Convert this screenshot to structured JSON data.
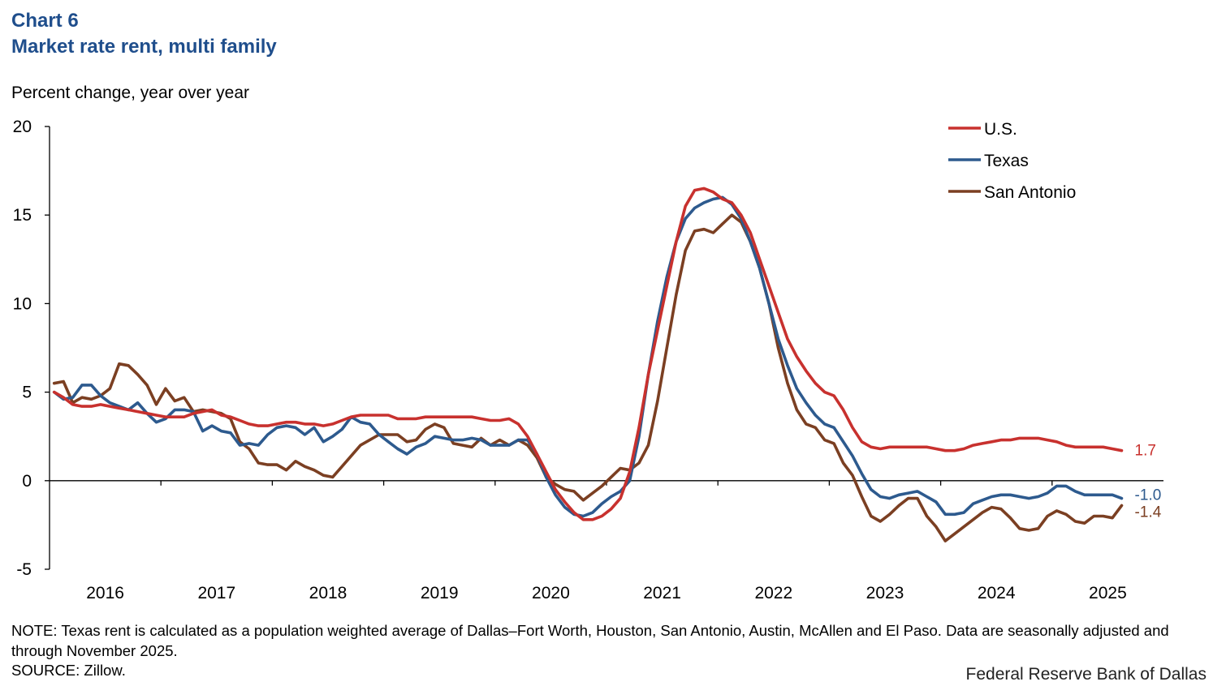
{
  "header": {
    "chart_number": "Chart 6",
    "title": "Market rate rent, multi family",
    "ylabel": "Percent change, year over year"
  },
  "footer": {
    "note": "NOTE: Texas rent is calculated as a population weighted average of Dallas–Fort Worth, Houston, San Antonio, Austin, McAllen and El Paso. Data are seasonally adjusted and through November 2025.",
    "source": "SOURCE: Zillow.",
    "brand": "Federal Reserve Bank of Dallas"
  },
  "chart_data": {
    "type": "line",
    "title": "Market rate rent, multi family",
    "ylabel": "Percent change, year over year",
    "xlabel": "",
    "ylim": [
      -5,
      20
    ],
    "yticks": [
      -5,
      0,
      5,
      10,
      15,
      20
    ],
    "xlim": [
      "2016-01",
      "2025-12"
    ],
    "x_tick_labels": [
      "2016",
      "2017",
      "2018",
      "2019",
      "2020",
      "2021",
      "2022",
      "2023",
      "2024",
      "2025"
    ],
    "grid": false,
    "legend_position": "top-right",
    "x_start": "2016-01",
    "x_frequency": "monthly",
    "series": [
      {
        "name": "U.S.",
        "color": "#c8312e",
        "end_label": "1.7",
        "values": [
          5.0,
          4.7,
          4.3,
          4.2,
          4.2,
          4.3,
          4.2,
          4.1,
          4.0,
          3.9,
          3.8,
          3.7,
          3.6,
          3.6,
          3.6,
          3.8,
          3.9,
          4.0,
          3.7,
          3.6,
          3.4,
          3.2,
          3.1,
          3.1,
          3.2,
          3.3,
          3.3,
          3.2,
          3.2,
          3.1,
          3.2,
          3.4,
          3.6,
          3.7,
          3.7,
          3.7,
          3.7,
          3.5,
          3.5,
          3.5,
          3.6,
          3.6,
          3.6,
          3.6,
          3.6,
          3.6,
          3.5,
          3.4,
          3.4,
          3.5,
          3.2,
          2.5,
          1.5,
          0.5,
          -0.5,
          -1.2,
          -1.8,
          -2.2,
          -2.2,
          -2.0,
          -1.6,
          -1.0,
          0.5,
          3.0,
          6.0,
          8.5,
          11.0,
          13.5,
          15.5,
          16.4,
          16.5,
          16.3,
          15.9,
          15.7,
          15.0,
          14.0,
          12.5,
          11.0,
          9.5,
          8.0,
          7.0,
          6.2,
          5.5,
          5.0,
          4.8,
          4.0,
          3.0,
          2.2,
          1.9,
          1.8,
          1.9,
          1.9,
          1.9,
          1.9,
          1.9,
          1.8,
          1.7,
          1.7,
          1.8,
          2.0,
          2.1,
          2.2,
          2.3,
          2.3,
          2.4,
          2.4,
          2.4,
          2.3,
          2.2,
          2.0,
          1.9,
          1.9,
          1.9,
          1.9,
          1.8,
          1.7
        ]
      },
      {
        "name": "Texas",
        "color": "#2d5a8e",
        "end_label": "-1.0",
        "values": [
          5.0,
          4.6,
          4.7,
          5.4,
          5.4,
          4.8,
          4.4,
          4.2,
          4.0,
          4.4,
          3.8,
          3.3,
          3.5,
          4.0,
          4.0,
          3.9,
          2.8,
          3.1,
          2.8,
          2.7,
          2.0,
          2.1,
          2.0,
          2.6,
          3.0,
          3.1,
          3.0,
          2.6,
          3.0,
          2.2,
          2.5,
          2.9,
          3.6,
          3.3,
          3.2,
          2.6,
          2.2,
          1.8,
          1.5,
          1.9,
          2.1,
          2.5,
          2.4,
          2.3,
          2.3,
          2.4,
          2.3,
          2.0,
          2.0,
          2.0,
          2.3,
          2.3,
          1.5,
          0.2,
          -0.8,
          -1.5,
          -1.9,
          -2.0,
          -1.8,
          -1.3,
          -0.9,
          -0.6,
          0.0,
          2.5,
          6.0,
          9.0,
          11.5,
          13.5,
          14.8,
          15.4,
          15.7,
          15.9,
          16.0,
          15.6,
          14.8,
          13.5,
          12.0,
          10.0,
          8.0,
          6.5,
          5.2,
          4.4,
          3.7,
          3.2,
          3.0,
          2.2,
          1.4,
          0.4,
          -0.5,
          -0.9,
          -1.0,
          -0.8,
          -0.7,
          -0.6,
          -0.9,
          -1.2,
          -1.9,
          -1.9,
          -1.8,
          -1.3,
          -1.1,
          -0.9,
          -0.8,
          -0.8,
          -0.9,
          -1.0,
          -0.9,
          -0.7,
          -0.3,
          -0.3,
          -0.6,
          -0.8,
          -0.8,
          -0.8,
          -0.8,
          -1.0
        ]
      },
      {
        "name": "San Antonio",
        "color": "#7b3f22",
        "end_label": "-1.4",
        "values": [
          5.5,
          5.6,
          4.4,
          4.7,
          4.6,
          4.8,
          5.2,
          6.6,
          6.5,
          6.0,
          5.4,
          4.3,
          5.2,
          4.5,
          4.7,
          3.9,
          4.0,
          3.9,
          3.8,
          3.5,
          2.2,
          1.8,
          1.0,
          0.9,
          0.9,
          0.6,
          1.1,
          0.8,
          0.6,
          0.3,
          0.2,
          0.8,
          1.4,
          2.0,
          2.3,
          2.6,
          2.6,
          2.6,
          2.2,
          2.3,
          2.9,
          3.2,
          3.0,
          2.1,
          2.0,
          1.9,
          2.4,
          2.0,
          2.3,
          2.0,
          2.3,
          2.0,
          1.3,
          0.2,
          -0.2,
          -0.5,
          -0.6,
          -1.1,
          -0.7,
          -0.3,
          0.2,
          0.7,
          0.6,
          1.0,
          2.0,
          4.5,
          7.5,
          10.5,
          13.0,
          14.1,
          14.2,
          14.0,
          14.5,
          15.0,
          14.6,
          13.5,
          12.0,
          10.0,
          7.5,
          5.5,
          4.0,
          3.2,
          3.0,
          2.3,
          2.1,
          1.0,
          0.3,
          -0.9,
          -2.0,
          -2.3,
          -1.9,
          -1.4,
          -1.0,
          -1.0,
          -2.0,
          -2.6,
          -3.4,
          -3.0,
          -2.6,
          -2.2,
          -1.8,
          -1.5,
          -1.6,
          -2.1,
          -2.7,
          -2.8,
          -2.7,
          -2.0,
          -1.7,
          -1.9,
          -2.3,
          -2.4,
          -2.0,
          -2.0,
          -2.1,
          -1.4
        ]
      }
    ]
  }
}
